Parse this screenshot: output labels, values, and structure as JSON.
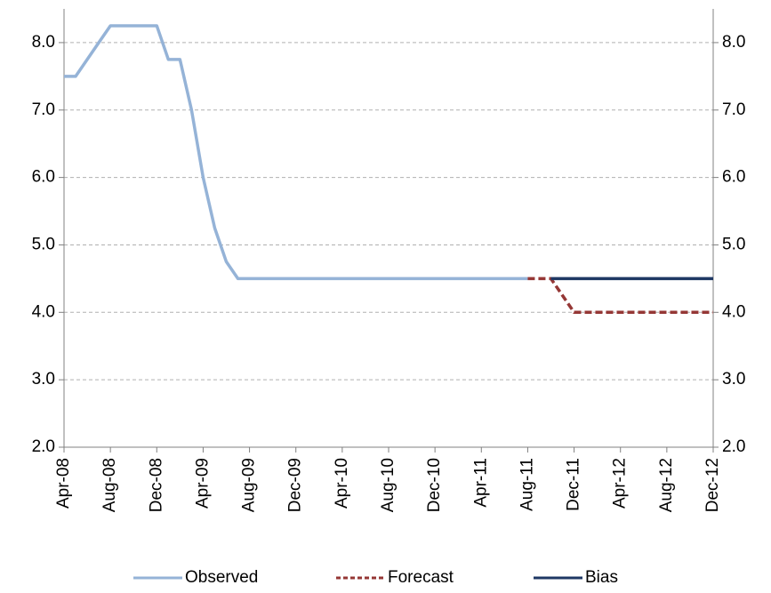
{
  "chart_data": {
    "type": "line",
    "categories": [
      "Apr-08",
      null,
      null,
      null,
      "Aug-08",
      null,
      null,
      null,
      "Dec-08",
      null,
      null,
      null,
      "Apr-09",
      null,
      null,
      null,
      "Aug-09",
      null,
      null,
      null,
      "Dec-09",
      null,
      null,
      null,
      "Apr-10",
      null,
      null,
      null,
      "Aug-10",
      null,
      null,
      null,
      "Dec-10",
      null,
      null,
      null,
      "Apr-11",
      null,
      null,
      null,
      "Aug-11",
      null,
      null,
      null,
      "Dec-11",
      null,
      null,
      null,
      "Apr-12",
      null,
      null,
      null,
      "Aug-12",
      null,
      null,
      null,
      "Dec-12"
    ],
    "series": [
      {
        "name": "Observed",
        "color": "#95b3d7",
        "line_style": "solid",
        "values": [
          7.5,
          7.5,
          7.75,
          8.0,
          8.25,
          8.25,
          8.25,
          8.25,
          8.25,
          7.75,
          7.75,
          7.0,
          6.0,
          5.25,
          4.75,
          4.5,
          4.5,
          4.5,
          4.5,
          4.5,
          4.5,
          4.5,
          4.5,
          4.5,
          4.5,
          4.5,
          4.5,
          4.5,
          4.5,
          4.5,
          4.5,
          4.5,
          4.5,
          4.5,
          4.5,
          4.5,
          4.5,
          4.5,
          4.5,
          4.5,
          4.5,
          null,
          null,
          null,
          null,
          null,
          null,
          null,
          null,
          null,
          null,
          null,
          null,
          null,
          null,
          null,
          null
        ]
      },
      {
        "name": "Forecast",
        "color": "#953735",
        "line_style": "dashed",
        "values": [
          null,
          null,
          null,
          null,
          null,
          null,
          null,
          null,
          null,
          null,
          null,
          null,
          null,
          null,
          null,
          null,
          null,
          null,
          null,
          null,
          null,
          null,
          null,
          null,
          null,
          null,
          null,
          null,
          null,
          null,
          null,
          null,
          null,
          null,
          null,
          null,
          null,
          null,
          null,
          null,
          4.5,
          4.5,
          4.5,
          4.25,
          4.0,
          4.0,
          4.0,
          4.0,
          4.0,
          4.0,
          4.0,
          4.0,
          4.0,
          4.0,
          4.0,
          4.0,
          4.0
        ]
      },
      {
        "name": "Bias",
        "color": "#1f3864",
        "line_style": "solid",
        "values": [
          null,
          null,
          null,
          null,
          null,
          null,
          null,
          null,
          null,
          null,
          null,
          null,
          null,
          null,
          null,
          null,
          null,
          null,
          null,
          null,
          null,
          null,
          null,
          null,
          null,
          null,
          null,
          null,
          null,
          null,
          null,
          null,
          null,
          null,
          null,
          null,
          null,
          null,
          null,
          null,
          null,
          null,
          4.5,
          4.5,
          4.5,
          4.5,
          4.5,
          4.5,
          4.5,
          4.5,
          4.5,
          4.5,
          4.5,
          4.5,
          4.5,
          4.5,
          4.5
        ]
      }
    ],
    "ylim": [
      2,
      8.5
    ],
    "yticks": [
      {
        "value": 2,
        "label": "2.0"
      },
      {
        "value": 3,
        "label": "3.0"
      },
      {
        "value": 4,
        "label": "4.0"
      },
      {
        "value": 5,
        "label": "5.0"
      },
      {
        "value": 6,
        "label": "6.0"
      },
      {
        "value": 7,
        "label": "7.0"
      },
      {
        "value": 8,
        "label": "8.0"
      }
    ],
    "y2lim": [
      2,
      8.5
    ],
    "y2ticks": [
      {
        "value": 2,
        "label": "2.0"
      },
      {
        "value": 3,
        "label": "3.0"
      },
      {
        "value": 4,
        "label": "4.0"
      },
      {
        "value": 5,
        "label": "5.0"
      },
      {
        "value": 6,
        "label": "6.0"
      },
      {
        "value": 7,
        "label": "7.0"
      },
      {
        "value": 8,
        "label": "8.0"
      }
    ],
    "grid": true,
    "legend": "bottom"
  }
}
